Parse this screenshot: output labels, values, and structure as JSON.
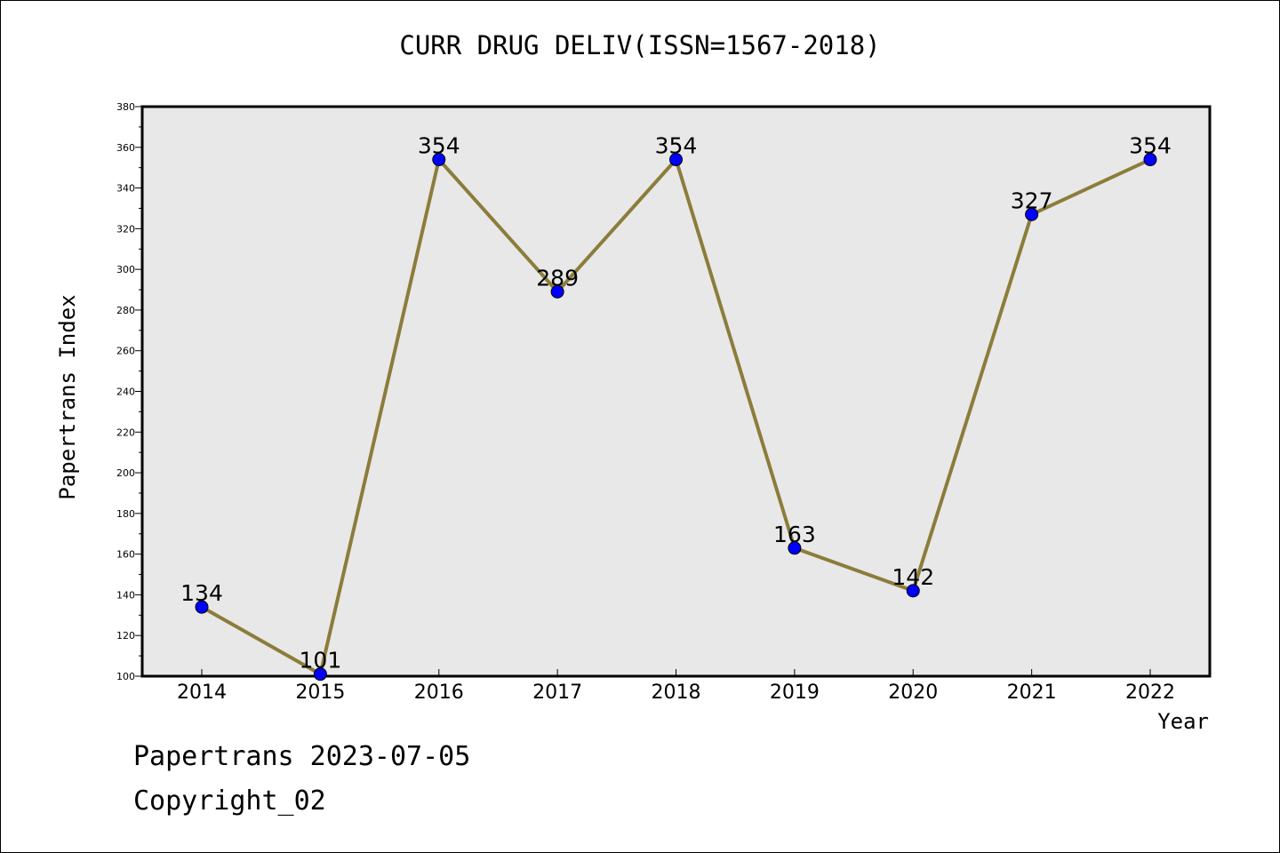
{
  "chart_data": {
    "type": "line",
    "title": "CURR DRUG DELIV(ISSN=1567-2018)",
    "xlabel": "Year",
    "ylabel": "Papertrans Index",
    "categories": [
      "2014",
      "2015",
      "2016",
      "2017",
      "2018",
      "2019",
      "2020",
      "2021",
      "2022"
    ],
    "series": [
      {
        "values": [
          134,
          101,
          354,
          289,
          354,
          163,
          142,
          327,
          354
        ]
      }
    ],
    "ylim": [
      100,
      380
    ],
    "yticks": [
      100,
      120,
      140,
      160,
      180,
      200,
      220,
      240,
      260,
      280,
      300,
      320,
      340,
      360,
      380
    ],
    "data_labels": [
      "134",
      "101",
      "354",
      "289",
      "354",
      "163",
      "142",
      "327",
      "354"
    ],
    "grid": false,
    "line_color": "#8b7d3a",
    "marker_color": "#0000ff",
    "plot_background": "#e8e8e8"
  },
  "footer": {
    "date_line": "Papertrans 2023-07-05",
    "copyright_line": "Copyright_02"
  }
}
